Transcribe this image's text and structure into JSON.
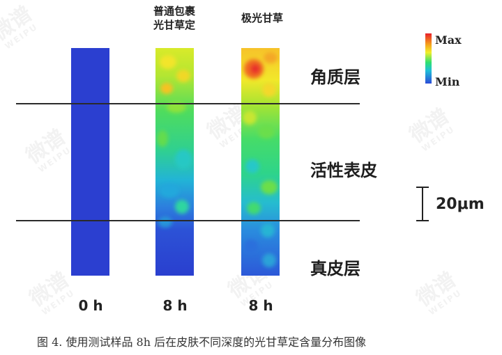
{
  "columns": [
    {
      "header_line1": "",
      "header_line2": "",
      "time_label": "0 h"
    },
    {
      "header_line1": "普通包裹",
      "header_line2": "光甘草定",
      "time_label": "8 h"
    },
    {
      "header_line1": "极光甘草",
      "header_line2": "",
      "time_label": "8 h"
    }
  ],
  "layers": {
    "stratum_corneum": "角质层",
    "viable_epidermis": "活性表皮",
    "dermis": "真皮层"
  },
  "colorbar": {
    "max_label": "Max",
    "min_label": "Min"
  },
  "scale_bar": {
    "label": "20μm"
  },
  "caption": "图 4. 使用测试样品 8h 后在皮肤不同深度的光甘草定含量分布图像",
  "watermark": {
    "text": "微谱",
    "subtext": "WEIPU"
  },
  "colors": {
    "max": "#e8202a",
    "high": "#f2ee2a",
    "mid": "#2ee070",
    "low": "#1fc0d8",
    "min": "#2b4bd8"
  }
}
